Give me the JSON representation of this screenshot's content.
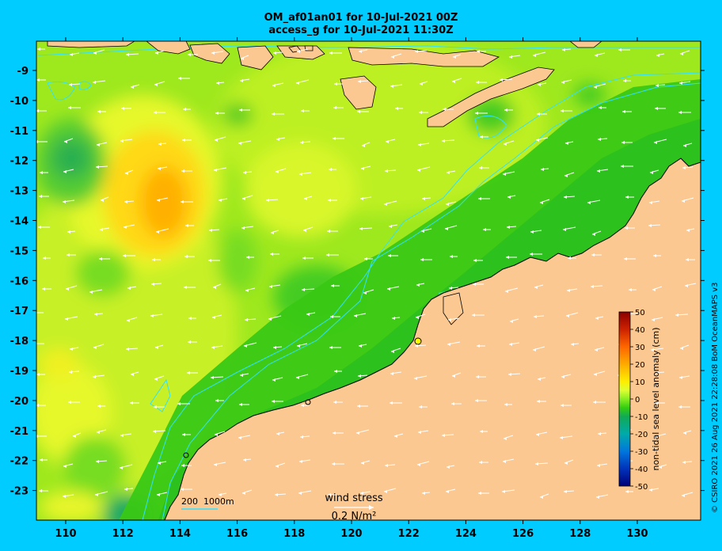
{
  "title_line1": "OM_af01an01 for 10-Jul-2021 00Z",
  "title_line2": "access_g for 10-Jul-2021 11:30Z",
  "axes": {
    "lon_labels": [
      "110",
      "112",
      "114",
      "116",
      "118",
      "120",
      "122",
      "124",
      "126",
      "128",
      "130"
    ],
    "lat_labels": [
      "-9",
      "-10",
      "-11",
      "-12",
      "-13",
      "-14",
      "-15",
      "-16",
      "-17",
      "-18",
      "-19",
      "-20",
      "-21",
      "-22",
      "-23"
    ]
  },
  "colorbar": {
    "label": "non-tidal sea level anomaly (cm)",
    "ticks": [
      "50",
      "40",
      "30",
      "20",
      "10",
      "0",
      "-10",
      "-20",
      "-30",
      "-40",
      "-50"
    ],
    "colors": [
      "#8b0000",
      "#cc2200",
      "#ff5500",
      "#ff9900",
      "#ffcc00",
      "#ffff00",
      "#ddff33",
      "#99ee22",
      "#55dd00",
      "#22bb22",
      "#11aa66",
      "#00aaaa",
      "#0088dd",
      "#0055ee",
      "#002299",
      "#000077"
    ]
  },
  "legend": {
    "contours": "200  1000m",
    "wind_stress_label": "wind stress",
    "wind_stress_scale": "0.2 N/m²"
  },
  "credit": "© CSIRO 2021  26 Aug 2021 22:28:08 BoM OceanMAPS v3",
  "colors": {
    "background": "#00ccff",
    "land": "#fcc891",
    "contour": "#33e0ff"
  }
}
